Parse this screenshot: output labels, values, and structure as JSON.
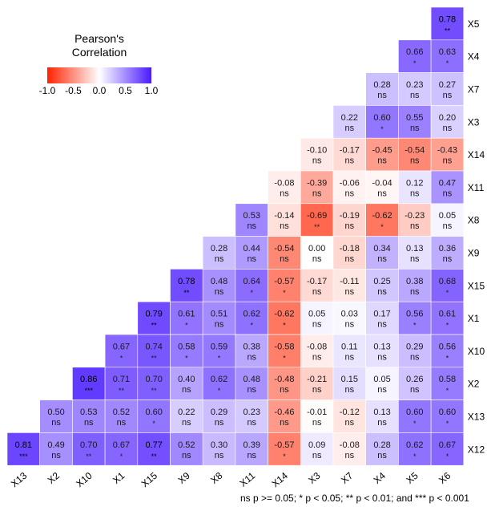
{
  "chart_data": {
    "type": "heatmap",
    "legend": {
      "title": "Pearson's\nCorrelation",
      "ticks": [
        "-1.0",
        "-0.5",
        "0.0",
        "0.5",
        "1.0"
      ],
      "colors": {
        "low": "#ff2200",
        "mid": "#ffffff",
        "high": "#4a1aff"
      }
    },
    "x_labels": [
      "X13",
      "X2",
      "X10",
      "X1",
      "X15",
      "X9",
      "X8",
      "X11",
      "X14",
      "X3",
      "X7",
      "X4",
      "X5",
      "X6"
    ],
    "y_labels": [
      "X5",
      "X4",
      "X7",
      "X3",
      "X14",
      "X11",
      "X8",
      "X9",
      "X15",
      "X1",
      "X10",
      "X2",
      "X13",
      "X12"
    ],
    "cells": [
      {
        "x": "X6",
        "y": "X5",
        "value": "0.78",
        "sig": "**"
      },
      {
        "x": "X5",
        "y": "X4",
        "value": "0.66",
        "sig": "*"
      },
      {
        "x": "X6",
        "y": "X4",
        "value": "0.63",
        "sig": "*"
      },
      {
        "x": "X4",
        "y": "X7",
        "value": "0.28",
        "sig": "ns"
      },
      {
        "x": "X5",
        "y": "X7",
        "value": "0.23",
        "sig": "ns"
      },
      {
        "x": "X6",
        "y": "X7",
        "value": "0.27",
        "sig": "ns"
      },
      {
        "x": "X7",
        "y": "X3",
        "value": "0.22",
        "sig": "ns"
      },
      {
        "x": "X4",
        "y": "X3",
        "value": "0.60",
        "sig": "*"
      },
      {
        "x": "X5",
        "y": "X3",
        "value": "0.55",
        "sig": "ns"
      },
      {
        "x": "X6",
        "y": "X3",
        "value": "0.20",
        "sig": "ns"
      },
      {
        "x": "X3",
        "y": "X14",
        "value": "-0.10",
        "sig": "ns"
      },
      {
        "x": "X7",
        "y": "X14",
        "value": "-0.17",
        "sig": "ns"
      },
      {
        "x": "X4",
        "y": "X14",
        "value": "-0.45",
        "sig": "ns"
      },
      {
        "x": "X5",
        "y": "X14",
        "value": "-0.54",
        "sig": "ns"
      },
      {
        "x": "X6",
        "y": "X14",
        "value": "-0.43",
        "sig": "ns"
      },
      {
        "x": "X14",
        "y": "X11",
        "value": "-0.08",
        "sig": "ns"
      },
      {
        "x": "X3",
        "y": "X11",
        "value": "-0.39",
        "sig": "ns"
      },
      {
        "x": "X7",
        "y": "X11",
        "value": "-0.06",
        "sig": "ns"
      },
      {
        "x": "X4",
        "y": "X11",
        "value": "-0.04",
        "sig": "ns"
      },
      {
        "x": "X5",
        "y": "X11",
        "value": "0.12",
        "sig": "ns"
      },
      {
        "x": "X6",
        "y": "X11",
        "value": "0.47",
        "sig": "ns"
      },
      {
        "x": "X11",
        "y": "X8",
        "value": "0.53",
        "sig": "ns"
      },
      {
        "x": "X14",
        "y": "X8",
        "value": "-0.14",
        "sig": "ns"
      },
      {
        "x": "X3",
        "y": "X8",
        "value": "-0.69",
        "sig": "**"
      },
      {
        "x": "X7",
        "y": "X8",
        "value": "-0.19",
        "sig": "ns"
      },
      {
        "x": "X4",
        "y": "X8",
        "value": "-0.62",
        "sig": "*"
      },
      {
        "x": "X5",
        "y": "X8",
        "value": "-0.23",
        "sig": "ns"
      },
      {
        "x": "X6",
        "y": "X8",
        "value": "0.05",
        "sig": "ns"
      },
      {
        "x": "X8",
        "y": "X9",
        "value": "0.28",
        "sig": "ns"
      },
      {
        "x": "X11",
        "y": "X9",
        "value": "0.44",
        "sig": "ns"
      },
      {
        "x": "X14",
        "y": "X9",
        "value": "-0.54",
        "sig": "ns"
      },
      {
        "x": "X3",
        "y": "X9",
        "value": "0.00",
        "sig": "ns"
      },
      {
        "x": "X7",
        "y": "X9",
        "value": "-0.18",
        "sig": "ns"
      },
      {
        "x": "X4",
        "y": "X9",
        "value": "0.34",
        "sig": "ns"
      },
      {
        "x": "X5",
        "y": "X9",
        "value": "0.13",
        "sig": "ns"
      },
      {
        "x": "X6",
        "y": "X9",
        "value": "0.36",
        "sig": "ns"
      },
      {
        "x": "X9",
        "y": "X15",
        "value": "0.78",
        "sig": "**"
      },
      {
        "x": "X8",
        "y": "X15",
        "value": "0.48",
        "sig": "ns"
      },
      {
        "x": "X11",
        "y": "X15",
        "value": "0.64",
        "sig": "*"
      },
      {
        "x": "X14",
        "y": "X15",
        "value": "-0.57",
        "sig": "*"
      },
      {
        "x": "X3",
        "y": "X15",
        "value": "-0.17",
        "sig": "ns"
      },
      {
        "x": "X7",
        "y": "X15",
        "value": "-0.11",
        "sig": "ns"
      },
      {
        "x": "X4",
        "y": "X15",
        "value": "0.25",
        "sig": "ns"
      },
      {
        "x": "X5",
        "y": "X15",
        "value": "0.38",
        "sig": "ns"
      },
      {
        "x": "X6",
        "y": "X15",
        "value": "0.68",
        "sig": "*"
      },
      {
        "x": "X15",
        "y": "X1",
        "value": "0.79",
        "sig": "**"
      },
      {
        "x": "X9",
        "y": "X1",
        "value": "0.61",
        "sig": "*"
      },
      {
        "x": "X8",
        "y": "X1",
        "value": "0.51",
        "sig": "ns"
      },
      {
        "x": "X11",
        "y": "X1",
        "value": "0.62",
        "sig": "*"
      },
      {
        "x": "X14",
        "y": "X1",
        "value": "-0.62",
        "sig": "*"
      },
      {
        "x": "X3",
        "y": "X1",
        "value": "0.05",
        "sig": "ns"
      },
      {
        "x": "X7",
        "y": "X1",
        "value": "0.03",
        "sig": "ns"
      },
      {
        "x": "X4",
        "y": "X1",
        "value": "0.17",
        "sig": "ns"
      },
      {
        "x": "X5",
        "y": "X1",
        "value": "0.56",
        "sig": "*"
      },
      {
        "x": "X6",
        "y": "X1",
        "value": "0.61",
        "sig": "*"
      },
      {
        "x": "X1",
        "y": "X10",
        "value": "0.67",
        "sig": "*"
      },
      {
        "x": "X15",
        "y": "X10",
        "value": "0.74",
        "sig": "**"
      },
      {
        "x": "X9",
        "y": "X10",
        "value": "0.58",
        "sig": "*"
      },
      {
        "x": "X8",
        "y": "X10",
        "value": "0.59",
        "sig": "*"
      },
      {
        "x": "X11",
        "y": "X10",
        "value": "0.38",
        "sig": "ns"
      },
      {
        "x": "X14",
        "y": "X10",
        "value": "-0.58",
        "sig": "*"
      },
      {
        "x": "X3",
        "y": "X10",
        "value": "-0.08",
        "sig": "ns"
      },
      {
        "x": "X7",
        "y": "X10",
        "value": "0.11",
        "sig": "ns"
      },
      {
        "x": "X4",
        "y": "X10",
        "value": "0.13",
        "sig": "ns"
      },
      {
        "x": "X5",
        "y": "X10",
        "value": "0.29",
        "sig": "ns"
      },
      {
        "x": "X6",
        "y": "X10",
        "value": "0.56",
        "sig": "*"
      },
      {
        "x": "X10",
        "y": "X2",
        "value": "0.86",
        "sig": "***"
      },
      {
        "x": "X1",
        "y": "X2",
        "value": "0.71",
        "sig": "**"
      },
      {
        "x": "X15",
        "y": "X2",
        "value": "0.70",
        "sig": "**"
      },
      {
        "x": "X9",
        "y": "X2",
        "value": "0.40",
        "sig": "ns"
      },
      {
        "x": "X8",
        "y": "X2",
        "value": "0.62",
        "sig": "*"
      },
      {
        "x": "X11",
        "y": "X2",
        "value": "0.48",
        "sig": "ns"
      },
      {
        "x": "X14",
        "y": "X2",
        "value": "-0.48",
        "sig": "ns"
      },
      {
        "x": "X3",
        "y": "X2",
        "value": "-0.21",
        "sig": "ns"
      },
      {
        "x": "X7",
        "y": "X2",
        "value": "0.15",
        "sig": "ns"
      },
      {
        "x": "X4",
        "y": "X2",
        "value": "0.05",
        "sig": "ns"
      },
      {
        "x": "X5",
        "y": "X2",
        "value": "0.26",
        "sig": "ns"
      },
      {
        "x": "X6",
        "y": "X2",
        "value": "0.58",
        "sig": "*"
      },
      {
        "x": "X2",
        "y": "X13",
        "value": "0.50",
        "sig": "ns"
      },
      {
        "x": "X10",
        "y": "X13",
        "value": "0.53",
        "sig": "ns"
      },
      {
        "x": "X1",
        "y": "X13",
        "value": "0.52",
        "sig": "ns"
      },
      {
        "x": "X15",
        "y": "X13",
        "value": "0.60",
        "sig": "*"
      },
      {
        "x": "X9",
        "y": "X13",
        "value": "0.22",
        "sig": "ns"
      },
      {
        "x": "X8",
        "y": "X13",
        "value": "0.29",
        "sig": "ns"
      },
      {
        "x": "X11",
        "y": "X13",
        "value": "0.23",
        "sig": "ns"
      },
      {
        "x": "X14",
        "y": "X13",
        "value": "-0.46",
        "sig": "ns"
      },
      {
        "x": "X3",
        "y": "X13",
        "value": "-0.01",
        "sig": "ns"
      },
      {
        "x": "X7",
        "y": "X13",
        "value": "-0.12",
        "sig": "ns"
      },
      {
        "x": "X4",
        "y": "X13",
        "value": "0.13",
        "sig": "ns"
      },
      {
        "x": "X5",
        "y": "X13",
        "value": "0.60",
        "sig": "*"
      },
      {
        "x": "X6",
        "y": "X13",
        "value": "0.60",
        "sig": "*"
      },
      {
        "x": "X13",
        "y": "X12",
        "value": "0.81",
        "sig": "***"
      },
      {
        "x": "X2",
        "y": "X12",
        "value": "0.49",
        "sig": "ns"
      },
      {
        "x": "X10",
        "y": "X12",
        "value": "0.70",
        "sig": "**"
      },
      {
        "x": "X1",
        "y": "X12",
        "value": "0.67",
        "sig": "*"
      },
      {
        "x": "X15",
        "y": "X12",
        "value": "0.77",
        "sig": "**"
      },
      {
        "x": "X9",
        "y": "X12",
        "value": "0.52",
        "sig": "ns"
      },
      {
        "x": "X8",
        "y": "X12",
        "value": "0.30",
        "sig": "ns"
      },
      {
        "x": "X11",
        "y": "X12",
        "value": "0.39",
        "sig": "ns"
      },
      {
        "x": "X14",
        "y": "X12",
        "value": "-0.57",
        "sig": "*"
      },
      {
        "x": "X3",
        "y": "X12",
        "value": "0.09",
        "sig": "ns"
      },
      {
        "x": "X7",
        "y": "X12",
        "value": "-0.08",
        "sig": "ns"
      },
      {
        "x": "X4",
        "y": "X12",
        "value": "0.28",
        "sig": "ns"
      },
      {
        "x": "X5",
        "y": "X12",
        "value": "0.62",
        "sig": "*"
      },
      {
        "x": "X6",
        "y": "X12",
        "value": "0.67",
        "sig": "*"
      }
    ],
    "footnote": "ns p >= 0.05; * p < 0.05; ** p < 0.01; and *** p < 0.001"
  }
}
